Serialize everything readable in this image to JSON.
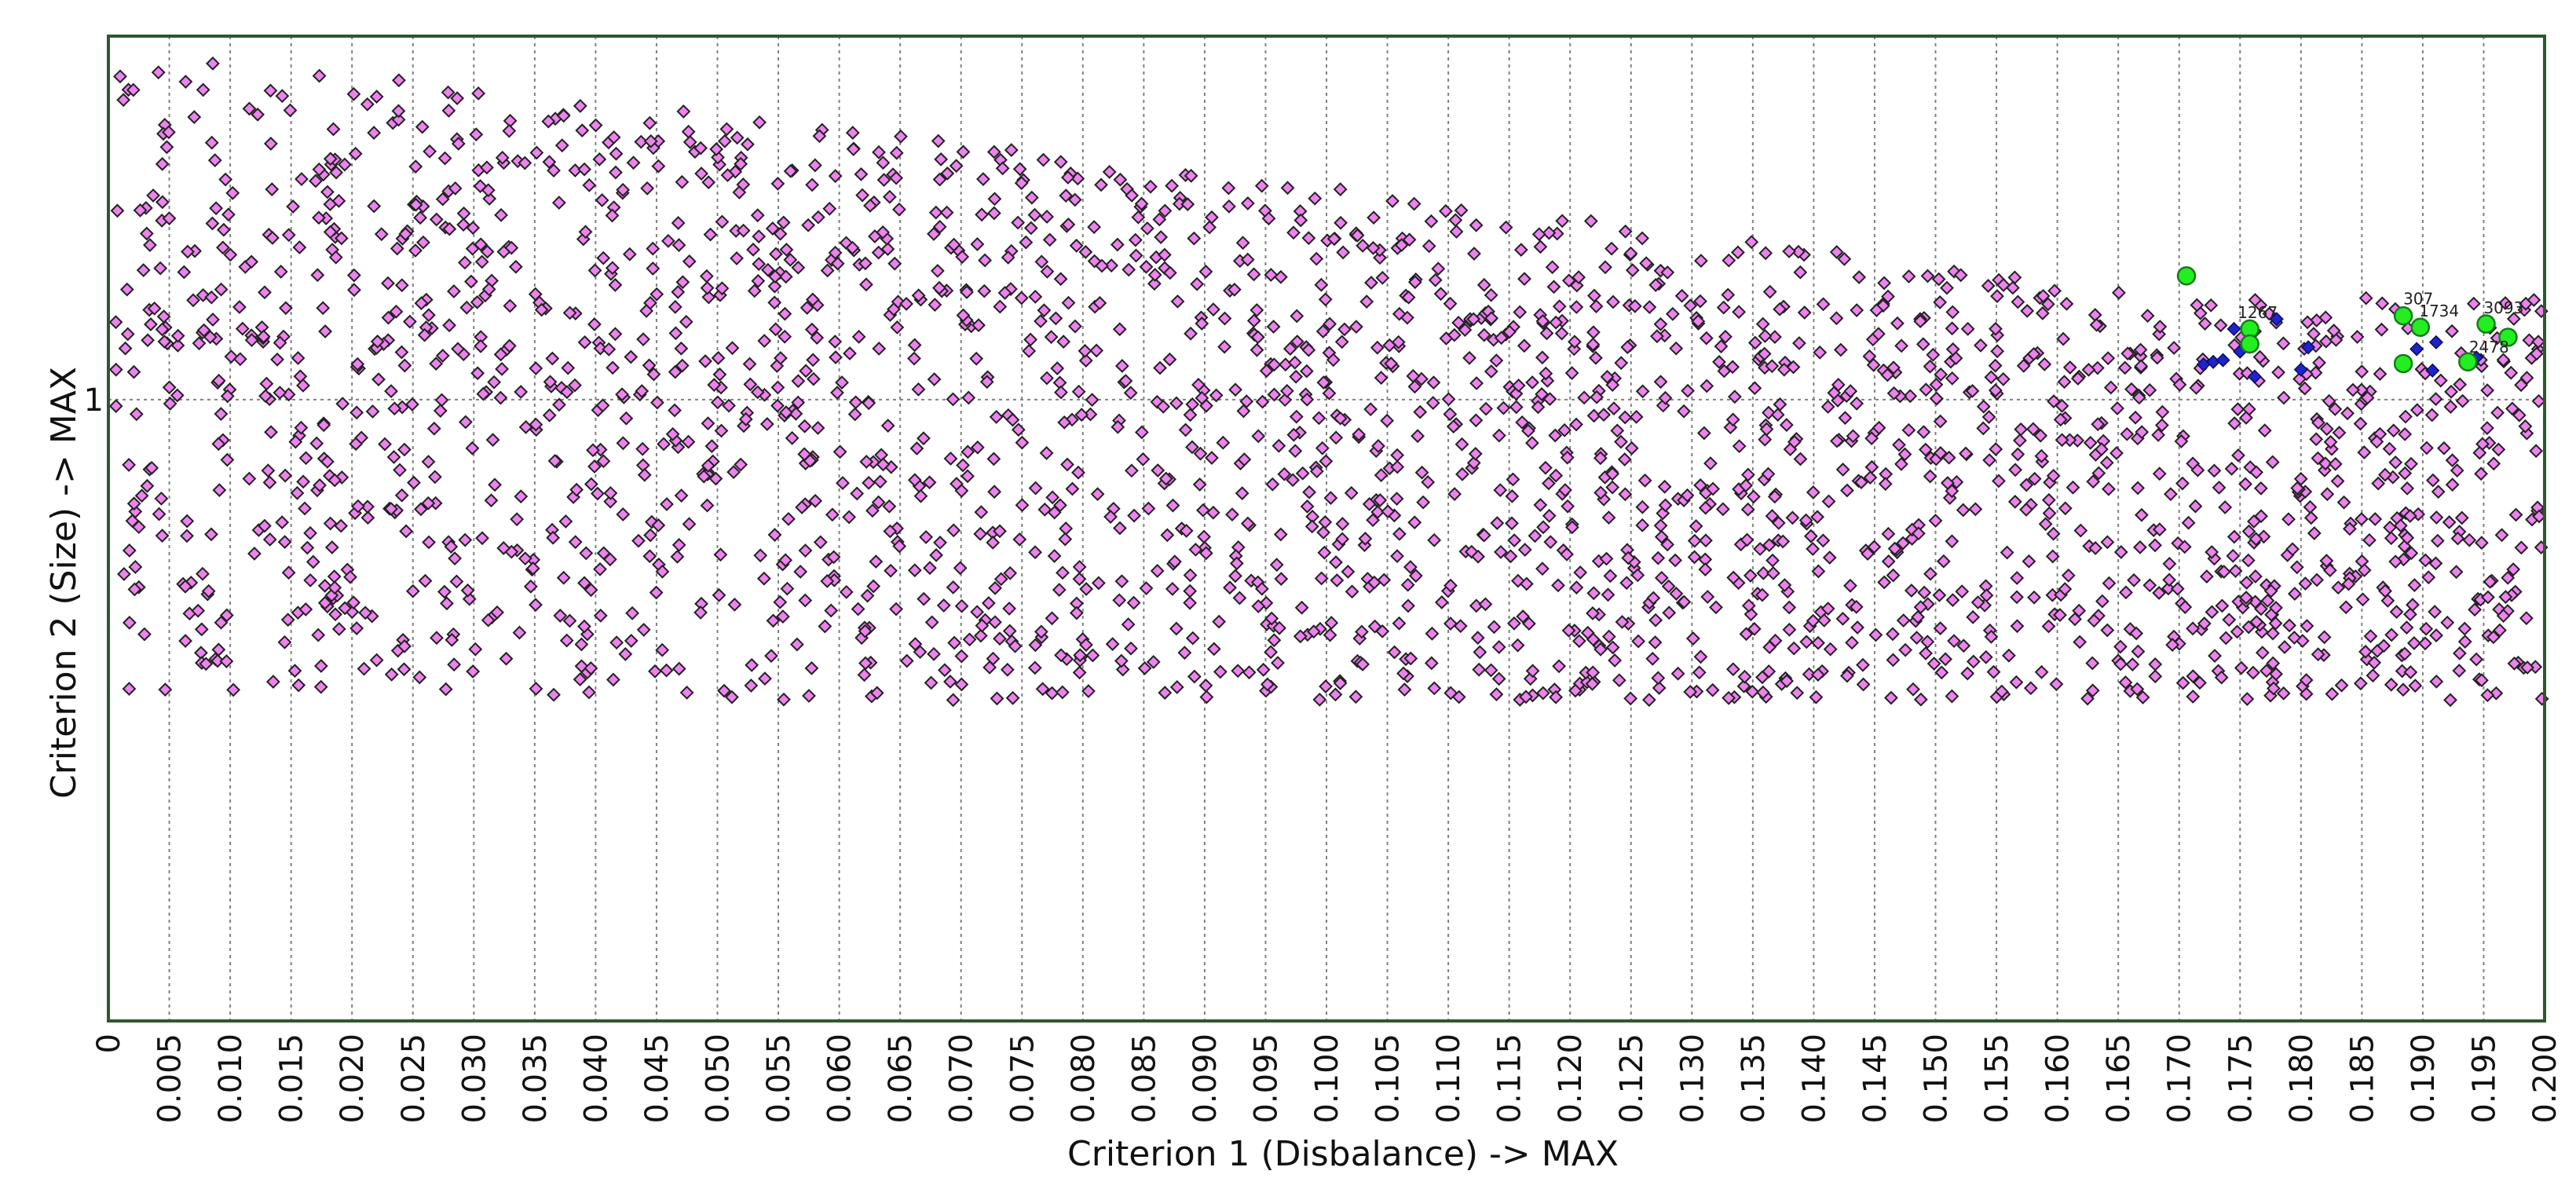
{
  "chart_data": {
    "type": "scatter",
    "title": "",
    "xlabel": "Criterion 1 (Disbalance) -> MAX",
    "ylabel": "Criterion 2 (Size) -> MAX",
    "xlim": [
      0,
      0.2
    ],
    "ylim": [
      0.5,
      1.5
    ],
    "log_y": true,
    "grid": {
      "x": true,
      "y": true,
      "style": "dotted"
    },
    "legend": "none",
    "x_ticks": [
      "0",
      "0.005",
      "0.010",
      "0.015",
      "0.020",
      "0.025",
      "0.030",
      "0.035",
      "0.040",
      "0.045",
      "0.050",
      "0.055",
      "0.060",
      "0.065",
      "0.070",
      "0.075",
      "0.080",
      "0.085",
      "0.090",
      "0.095",
      "0.100",
      "0.105",
      "0.110",
      "0.115",
      "0.120",
      "0.125",
      "0.130",
      "0.135",
      "0.140",
      "0.145",
      "0.150",
      "0.155",
      "0.160",
      "0.165",
      "0.170",
      "0.175",
      "0.180",
      "0.185",
      "0.190",
      "0.195",
      "0.200"
    ],
    "y_ticks": [
      "1"
    ],
    "colors": {
      "population": "#ee82ee",
      "population_edge": "#222222",
      "dominated": "#1e24c8",
      "pareto": "#22ee22",
      "pareto_edge": "#1a7a1a",
      "frame": "#2a5a2a",
      "grid": "#808080"
    },
    "series": [
      {
        "marker": "diamond",
        "color": "#ee82ee",
        "generator": "dense quasi-random cloud; upper bound of y shrinks from ~1.48 at x=0 to ~1.12 near x=0.17, lower bound ~0.72 everywhere",
        "count": 2600
      },
      {
        "marker": "diamond",
        "color": "#1e24c8",
        "points": [
          [
            0.1745,
            1.082
          ],
          [
            0.178,
            1.094
          ],
          [
            0.172,
            1.04
          ],
          [
            0.1728,
            1.043
          ],
          [
            0.175,
            1.055
          ],
          [
            0.1762,
            1.026
          ],
          [
            0.1806,
            1.06
          ],
          [
            0.18,
            1.034
          ],
          [
            0.1895,
            1.058
          ],
          [
            0.1908,
            1.033
          ],
          [
            0.1911,
            1.066
          ],
          [
            0.1944,
            1.048
          ],
          [
            0.1736,
            1.045
          ]
        ]
      },
      {
        "marker": "circle",
        "color": "#22ee22",
        "points": [
          [
            0.1706,
            1.148
          ],
          [
            0.1758,
            1.082
          ],
          [
            0.1758,
            1.064
          ],
          [
            0.1884,
            1.098
          ],
          [
            0.1884,
            1.041
          ],
          [
            0.1898,
            1.084
          ],
          [
            0.1937,
            1.043
          ],
          [
            0.1952,
            1.088
          ],
          [
            0.197,
            1.072
          ]
        ]
      }
    ],
    "annotations": [
      {
        "text": "1267",
        "x": 0.1748,
        "y": 1.095
      },
      {
        "text": "307",
        "x": 0.1884,
        "y": 1.112
      },
      {
        "text": "1734",
        "x": 0.1897,
        "y": 1.097
      },
      {
        "text": "3093",
        "x": 0.195,
        "y": 1.101
      },
      {
        "text": "2478",
        "x": 0.1938,
        "y": 1.054
      }
    ]
  }
}
